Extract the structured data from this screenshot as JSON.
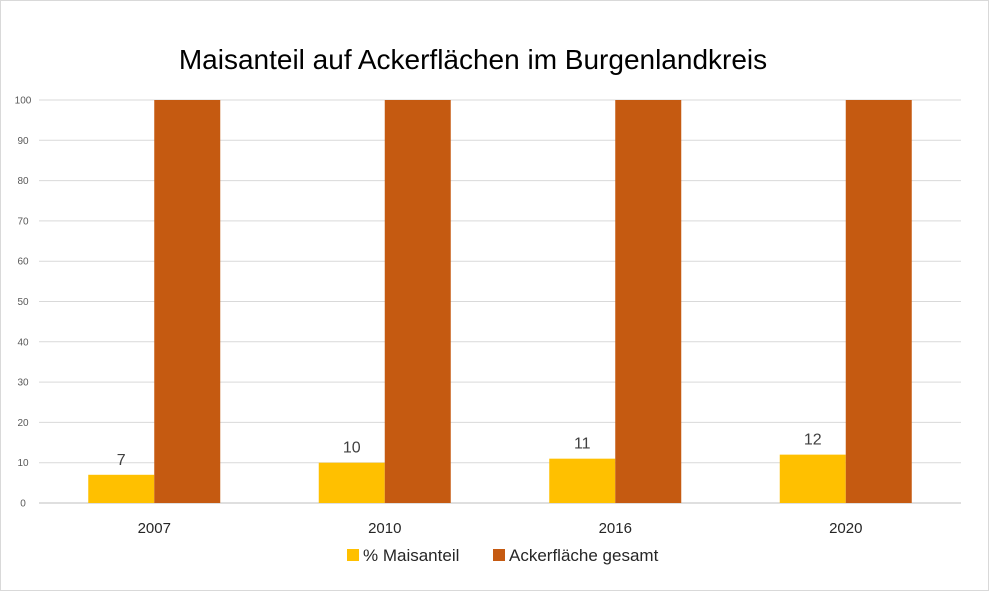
{
  "chart_data": {
    "type": "bar",
    "title": "Maisanteil auf Ackerflächen im Burgenlandkreis",
    "categories": [
      "2007",
      "2010",
      "2016",
      "2020"
    ],
    "series": [
      {
        "name": "% Maisanteil",
        "values": [
          7,
          10,
          11,
          12
        ],
        "color": "#FFC000",
        "data_labels": [
          "7",
          "10",
          "11",
          "12"
        ]
      },
      {
        "name": "Ackerfläche gesamt",
        "values": [
          100,
          100,
          100,
          100
        ],
        "color": "#C55A11"
      }
    ],
    "xlabel": "",
    "ylabel": "",
    "ylim": [
      0,
      100
    ],
    "yticks": [
      "0",
      "10",
      "20",
      "30",
      "40",
      "50",
      "60",
      "70",
      "80",
      "90",
      "100"
    ],
    "grid": true,
    "legend_position": "bottom"
  }
}
